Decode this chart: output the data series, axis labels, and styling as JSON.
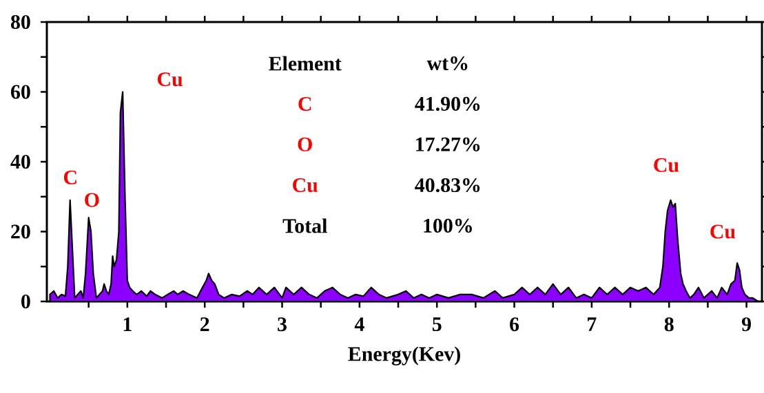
{
  "chart_data": {
    "type": "area",
    "xlabel": "Energy(Kev)",
    "x": [
      0.0,
      0.05,
      0.1,
      0.15,
      0.2,
      0.23,
      0.26,
      0.29,
      0.32,
      0.36,
      0.4,
      0.43,
      0.46,
      0.5,
      0.53,
      0.56,
      0.6,
      0.64,
      0.68,
      0.7,
      0.73,
      0.76,
      0.79,
      0.81,
      0.83,
      0.86,
      0.89,
      0.91,
      0.94,
      0.97,
      1.0,
      1.03,
      1.07,
      1.12,
      1.18,
      1.25,
      1.3,
      1.36,
      1.45,
      1.52,
      1.6,
      1.65,
      1.72,
      1.8,
      1.9,
      1.97,
      2.02,
      2.05,
      2.09,
      2.13,
      2.18,
      2.25,
      2.35,
      2.45,
      2.55,
      2.62,
      2.7,
      2.8,
      2.9,
      3.0,
      3.05,
      3.15,
      3.25,
      3.35,
      3.45,
      3.55,
      3.65,
      3.75,
      3.85,
      3.95,
      4.05,
      4.15,
      4.25,
      4.35,
      4.5,
      4.6,
      4.7,
      4.8,
      4.9,
      5.0,
      5.15,
      5.3,
      5.45,
      5.6,
      5.75,
      5.85,
      6.0,
      6.1,
      6.2,
      6.3,
      6.4,
      6.5,
      6.6,
      6.7,
      6.8,
      6.9,
      7.0,
      7.1,
      7.2,
      7.3,
      7.4,
      7.5,
      7.6,
      7.7,
      7.8,
      7.88,
      7.92,
      7.95,
      7.98,
      8.02,
      8.05,
      8.08,
      8.11,
      8.15,
      8.18,
      8.22,
      8.27,
      8.32,
      8.38,
      8.45,
      8.5,
      8.55,
      8.62,
      8.68,
      8.75,
      8.8,
      8.85,
      8.88,
      8.91,
      8.94,
      8.98,
      9.03,
      9.08,
      9.15
    ],
    "series": [
      {
        "color": "#8b00ff",
        "values": [
          2,
          3,
          1,
          2,
          1.5,
          10,
          29,
          15,
          1,
          2,
          3,
          1,
          8,
          24,
          20,
          8,
          1,
          2,
          3,
          5,
          3,
          2,
          5,
          13,
          10,
          12,
          20,
          54,
          60,
          30,
          6,
          4,
          3,
          2,
          3,
          1.5,
          3,
          2,
          1,
          2,
          3,
          2,
          3,
          2,
          1,
          4,
          6,
          8,
          6,
          5,
          2,
          1,
          2,
          1.5,
          3,
          2,
          4,
          2,
          4,
          1,
          4,
          2,
          4,
          2,
          1,
          3,
          4,
          2,
          1,
          2,
          1.5,
          4,
          2,
          1,
          2,
          3,
          1,
          2,
          1,
          2,
          1,
          2,
          2,
          1,
          3,
          1,
          2,
          4,
          2,
          4,
          2,
          5,
          2,
          4,
          1,
          2,
          1,
          4,
          2,
          4,
          2,
          4,
          3,
          4,
          2,
          4,
          10,
          20,
          26,
          29,
          27,
          28,
          18,
          8,
          5,
          3,
          1,
          2,
          4,
          1,
          2,
          3,
          1,
          4,
          2,
          5,
          6,
          11,
          9,
          4,
          2,
          1,
          1,
          0
        ]
      }
    ],
    "xlim": [
      -0.04,
      9.2
    ],
    "ylim": [
      0,
      80
    ],
    "xticks": [
      {
        "value": 0.5,
        "label": null
      },
      1,
      {
        "value": 1.5,
        "label": null
      },
      2,
      {
        "value": 2.5,
        "label": null
      },
      3,
      {
        "value": 3.5,
        "label": null
      },
      4,
      {
        "value": 4.5,
        "label": null
      },
      5,
      {
        "value": 5.5,
        "label": null
      },
      6,
      {
        "value": 6.5,
        "label": null
      },
      7,
      {
        "value": 7.5,
        "label": null
      },
      8,
      {
        "value": 8.5,
        "label": null
      },
      9
    ],
    "yticks": [
      0,
      {
        "value": 10,
        "label": null
      },
      20,
      {
        "value": 30,
        "label": null
      },
      40,
      {
        "value": 50,
        "label": null
      },
      60,
      {
        "value": 70,
        "label": null
      },
      80
    ],
    "annotations": [
      "C",
      "O",
      "Cu",
      "Cu",
      "Cu",
      "Element",
      "wt%",
      "C",
      "41.90%",
      "O",
      "17.27%",
      "Cu",
      "40.83%",
      "Total",
      "100%"
    ]
  }
}
